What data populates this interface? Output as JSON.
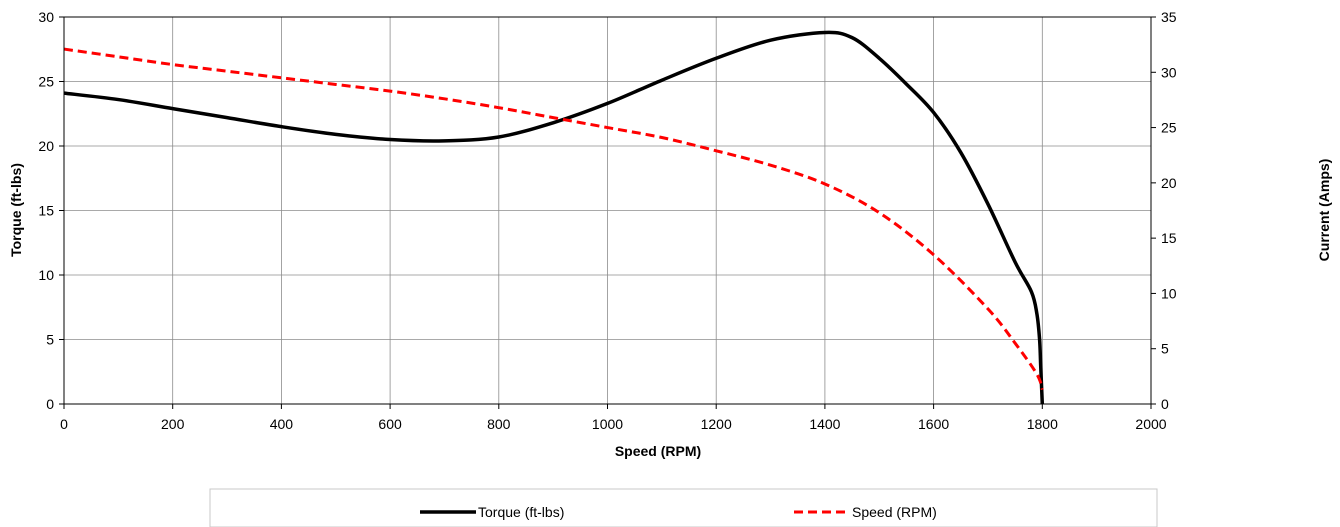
{
  "chart_data": {
    "type": "line",
    "xlabel": "Speed (RPM)",
    "ylabel_left": "Torque (ft-lbs)",
    "ylabel_right": "Current (Amps)",
    "xlim": [
      0,
      2000
    ],
    "ylim_left": [
      0,
      30
    ],
    "ylim_right": [
      0,
      35
    ],
    "x_ticks": [
      0,
      200,
      400,
      600,
      800,
      1000,
      1200,
      1400,
      1600,
      1800,
      2000
    ],
    "y_ticks_left": [
      0,
      5,
      10,
      15,
      20,
      25,
      30
    ],
    "y_ticks_right": [
      0,
      5,
      10,
      15,
      20,
      25,
      30,
      35
    ],
    "grid": true,
    "legend_position": "bottom",
    "series": [
      {
        "name": "Torque (ft-lbs)",
        "axis": "left",
        "color": "#000000",
        "style": "solid",
        "points": [
          [
            0,
            24.1
          ],
          [
            100,
            23.6
          ],
          [
            200,
            22.9
          ],
          [
            300,
            22.2
          ],
          [
            400,
            21.5
          ],
          [
            500,
            20.9
          ],
          [
            600,
            20.5
          ],
          [
            700,
            20.4
          ],
          [
            800,
            20.7
          ],
          [
            900,
            21.8
          ],
          [
            1000,
            23.3
          ],
          [
            1100,
            25.1
          ],
          [
            1200,
            26.8
          ],
          [
            1300,
            28.2
          ],
          [
            1400,
            28.8
          ],
          [
            1450,
            28.4
          ],
          [
            1500,
            26.8
          ],
          [
            1550,
            24.8
          ],
          [
            1600,
            22.6
          ],
          [
            1650,
            19.5
          ],
          [
            1700,
            15.5
          ],
          [
            1750,
            11.0
          ],
          [
            1780,
            8.7
          ],
          [
            1790,
            7.0
          ],
          [
            1795,
            5.0
          ],
          [
            1797,
            3.0
          ],
          [
            1800,
            0.0
          ]
        ]
      },
      {
        "name": "Speed (RPM)",
        "axis": "right",
        "color": "#ff0000",
        "style": "dashed",
        "points": [
          [
            0,
            32.1
          ],
          [
            100,
            31.4
          ],
          [
            200,
            30.7
          ],
          [
            300,
            30.1
          ],
          [
            400,
            29.5
          ],
          [
            500,
            28.9
          ],
          [
            600,
            28.3
          ],
          [
            700,
            27.6
          ],
          [
            800,
            26.8
          ],
          [
            900,
            25.9
          ],
          [
            1000,
            25.0
          ],
          [
            1100,
            24.1
          ],
          [
            1200,
            22.9
          ],
          [
            1300,
            21.6
          ],
          [
            1400,
            19.9
          ],
          [
            1500,
            17.3
          ],
          [
            1600,
            13.5
          ],
          [
            1700,
            8.6
          ],
          [
            1750,
            5.5
          ],
          [
            1790,
            2.7
          ],
          [
            1800,
            1.3
          ]
        ]
      }
    ]
  },
  "legend": {
    "items": [
      {
        "label": "Torque (ft-lbs)",
        "color": "#000000",
        "style": "solid"
      },
      {
        "label": "Speed (RPM)",
        "color": "#ff0000",
        "style": "dashed"
      }
    ]
  }
}
